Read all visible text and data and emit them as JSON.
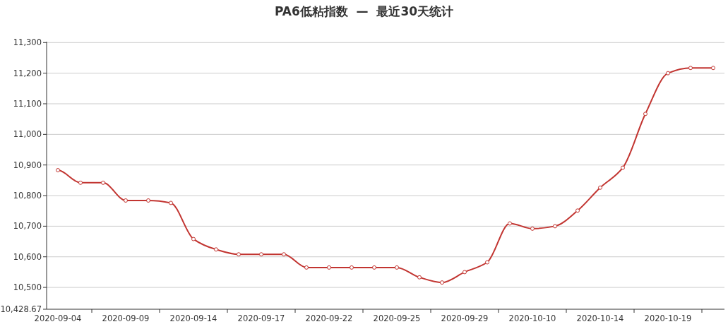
{
  "chart_data": {
    "type": "line",
    "title": "PA6低粘指数  —  最近30天统计",
    "categories": [
      "2020-09-04",
      null,
      null,
      "2020-09-09",
      null,
      null,
      "2020-09-14",
      null,
      null,
      "2020-09-17",
      null,
      null,
      "2020-09-22",
      null,
      null,
      "2020-09-25",
      null,
      null,
      "2020-09-29",
      null,
      null,
      "2020-10-10",
      null,
      null,
      "2020-10-14",
      null,
      null,
      "2020-10-19",
      null,
      null
    ],
    "series": [
      {
        "color": "#c23531",
        "values": [
          10883,
          10842,
          10842,
          10784,
          10784,
          10776,
          10658,
          10624,
          10608,
          10608,
          10608,
          10565,
          10565,
          10565,
          10565,
          10565,
          10533,
          10516,
          10550,
          10582,
          10709,
          10692,
          10700,
          10751,
          10826,
          10891,
          11067,
          11200,
          11217,
          11217
        ]
      }
    ],
    "ylim": [
      10428.67,
      11303
    ],
    "yticks": [
      {
        "value": 10428.67,
        "label": "10,428.67"
      },
      {
        "value": 10500,
        "label": "10,500"
      },
      {
        "value": 10600,
        "label": "10,600"
      },
      {
        "value": 10700,
        "label": "10,700"
      },
      {
        "value": 10800,
        "label": "10,800"
      },
      {
        "value": 10900,
        "label": "10,900"
      },
      {
        "value": 11000,
        "label": "11,000"
      },
      {
        "value": 11100,
        "label": "11,100"
      },
      {
        "value": 11200,
        "label": "11,200"
      },
      {
        "value": 11300,
        "label": "11,300"
      }
    ],
    "grid": "y",
    "marker": "circle",
    "line_style": "solid"
  }
}
